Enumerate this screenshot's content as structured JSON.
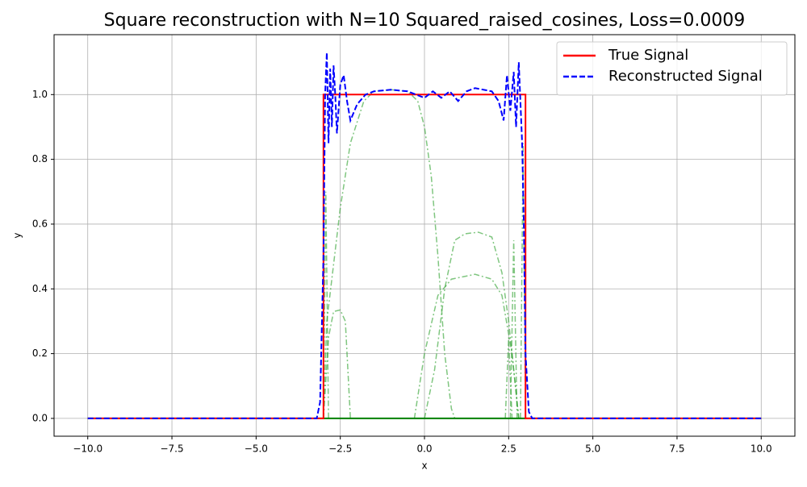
{
  "chart_data": {
    "type": "line",
    "title": "Square reconstruction with N=10 Squared_raised_cosines, Loss=0.0009",
    "x_label": "x",
    "y_label": "y",
    "xlim": [
      -11,
      11
    ],
    "ylim": [
      -0.055,
      1.185
    ],
    "grid": true,
    "legend": "upper right",
    "xticks": [
      {
        "value": -10,
        "label": "−10.0"
      },
      {
        "value": -7.5,
        "label": "−7.5"
      },
      {
        "value": -5,
        "label": "−5.0"
      },
      {
        "value": -2.5,
        "label": "−2.5"
      },
      {
        "value": 0,
        "label": "0.0"
      },
      {
        "value": 2.5,
        "label": "2.5"
      },
      {
        "value": 5,
        "label": "5.0"
      },
      {
        "value": 7.5,
        "label": "7.5"
      },
      {
        "value": 10,
        "label": "10.0"
      }
    ],
    "yticks": [
      {
        "value": 0,
        "label": "0.0"
      },
      {
        "value": 0.2,
        "label": "0.2"
      },
      {
        "value": 0.4,
        "label": "0.4"
      },
      {
        "value": 0.6,
        "label": "0.6"
      },
      {
        "value": 0.8,
        "label": "0.8"
      },
      {
        "value": 1,
        "label": "1.0"
      }
    ],
    "series": [
      {
        "color": "#2ca02c",
        "linestyle": "dashdot",
        "opacity": 0.6,
        "x": [
          -3.0,
          -2.9,
          -2.5,
          -2.2,
          -1.8,
          -1.5,
          -1.0,
          -0.5,
          -0.2,
          0,
          0.2,
          0.4,
          0.6,
          0.8,
          0.9
        ],
        "values": [
          0,
          0.3,
          0.65,
          0.85,
          0.98,
          1.01,
          1.015,
          1.01,
          0.98,
          0.9,
          0.75,
          0.5,
          0.2,
          0.03,
          0
        ]
      },
      {
        "color": "#2ca02c",
        "linestyle": "dashdot",
        "opacity": 0.6,
        "x": [
          0,
          0.3,
          0.6,
          0.9,
          1.2,
          1.6,
          2.0,
          2.3,
          2.5,
          2.7,
          2.8
        ],
        "values": [
          0,
          0.15,
          0.4,
          0.55,
          0.57,
          0.575,
          0.56,
          0.45,
          0.3,
          0.1,
          0
        ]
      },
      {
        "color": "#2ca02c",
        "linestyle": "dashdot",
        "opacity": 0.6,
        "x": [
          -0.3,
          0,
          0.4,
          0.8,
          1.5,
          2.0,
          2.3,
          2.6,
          2.8
        ],
        "values": [
          0,
          0.2,
          0.38,
          0.43,
          0.445,
          0.43,
          0.38,
          0.2,
          0
        ]
      },
      {
        "color": "#2ca02c",
        "linestyle": "dashdot",
        "opacity": 0.6,
        "x": [
          -3.0,
          -2.85,
          -2.7,
          -2.5,
          -2.35,
          -2.2
        ],
        "values": [
          0,
          0.25,
          0.33,
          0.335,
          0.3,
          0
        ]
      },
      {
        "color": "#2ca02c",
        "linestyle": "dashdot",
        "opacity": 0.6,
        "x": [
          -3.0,
          -2.93,
          -2.85
        ],
        "values": [
          0,
          0.7,
          0
        ]
      },
      {
        "color": "#2ca02c",
        "linestyle": "dashdot",
        "opacity": 0.6,
        "x": [
          2.85,
          2.93,
          3.0
        ],
        "values": [
          0,
          0.85,
          0
        ]
      },
      {
        "color": "#2ca02c",
        "linestyle": "dashdot",
        "opacity": 0.6,
        "x": [
          2.55,
          2.65,
          2.75
        ],
        "values": [
          0,
          0.55,
          0
        ]
      },
      {
        "color": "#2ca02c",
        "linestyle": "dashdot",
        "opacity": 0.6,
        "x": [
          2.4,
          2.5,
          2.6
        ],
        "values": [
          0,
          0.25,
          0
        ]
      },
      {
        "color": "#008000",
        "linestyle": "solid",
        "opacity": 1,
        "x": [
          -10,
          10
        ],
        "values": [
          0,
          0
        ]
      },
      {
        "name": "True Signal",
        "color": "#ff0000",
        "linestyle": "solid",
        "opacity": 1,
        "x": [
          -10,
          -3,
          -3,
          3,
          3,
          10
        ],
        "values": [
          0,
          0,
          1,
          1,
          0,
          0
        ]
      },
      {
        "name": "Reconstructed Signal",
        "color": "#0000ff",
        "linestyle": "dashed",
        "opacity": 1,
        "x": [
          -10,
          -3.2,
          -3.1,
          -3.0,
          -2.95,
          -2.9,
          -2.85,
          -2.8,
          -2.75,
          -2.7,
          -2.65,
          -2.6,
          -2.5,
          -2.4,
          -2.3,
          -2.2,
          -2.0,
          -1.75,
          -1.5,
          -1.0,
          -0.5,
          -0.25,
          0,
          0.25,
          0.5,
          0.75,
          1.0,
          1.25,
          1.5,
          2.0,
          2.2,
          2.35,
          2.45,
          2.55,
          2.65,
          2.72,
          2.8,
          2.9,
          2.95,
          3.0,
          3.1,
          3.2,
          10
        ],
        "values": [
          0,
          0,
          0.05,
          0.5,
          1.0,
          1.13,
          0.85,
          1.08,
          0.9,
          1.09,
          1.0,
          0.88,
          1.03,
          1.06,
          0.98,
          0.92,
          0.97,
          1.0,
          1.01,
          1.015,
          1.01,
          1.0,
          0.99,
          1.01,
          0.99,
          1.01,
          0.98,
          1.01,
          1.02,
          1.01,
          0.98,
          0.92,
          1.06,
          0.95,
          1.07,
          0.9,
          1.1,
          0.85,
          0.6,
          0.2,
          0.02,
          0,
          0
        ]
      }
    ]
  }
}
